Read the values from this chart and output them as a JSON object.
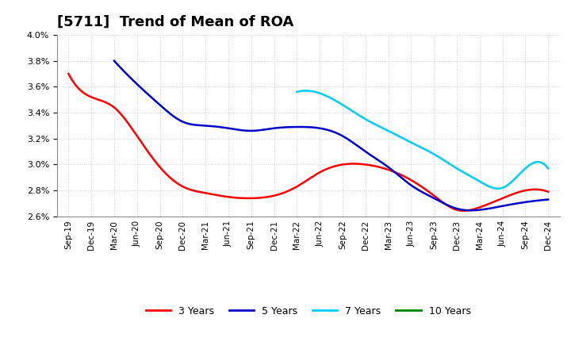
{
  "title": "[5711]  Trend of Mean of ROA",
  "x_labels": [
    "Sep-19",
    "Dec-19",
    "Mar-20",
    "Jun-20",
    "Sep-20",
    "Dec-20",
    "Mar-21",
    "Jun-21",
    "Sep-21",
    "Dec-21",
    "Mar-22",
    "Jun-22",
    "Sep-22",
    "Dec-22",
    "Mar-23",
    "Jun-23",
    "Sep-23",
    "Dec-23",
    "Mar-24",
    "Jun-24",
    "Sep-24",
    "Dec-24"
  ],
  "ylim": [
    0.026,
    0.04
  ],
  "yticks": [
    0.026,
    0.028,
    0.03,
    0.032,
    0.034,
    0.036,
    0.038,
    0.04
  ],
  "y_3yr": [
    3.7,
    3.52,
    3.44,
    3.22,
    2.98,
    2.83,
    2.78,
    2.75,
    2.74,
    2.76,
    2.83,
    2.94,
    3.0,
    3.0,
    2.96,
    2.88,
    2.76,
    2.65,
    2.67,
    2.74,
    2.8,
    2.79
  ],
  "y_5yr": [
    null,
    null,
    3.8,
    3.62,
    3.46,
    3.33,
    3.3,
    3.28,
    3.26,
    3.28,
    3.29,
    3.28,
    3.22,
    3.1,
    2.98,
    2.84,
    2.74,
    2.66,
    2.65,
    2.68,
    2.71,
    2.73
  ],
  "y_7yr": [
    null,
    null,
    null,
    null,
    null,
    null,
    null,
    null,
    null,
    null,
    3.56,
    3.55,
    3.46,
    3.35,
    3.26,
    3.17,
    3.08,
    2.97,
    2.87,
    2.82,
    2.97,
    2.97
  ],
  "y_10yr": [
    null,
    null,
    null,
    null,
    null,
    null,
    null,
    null,
    null,
    null,
    null,
    null,
    null,
    null,
    null,
    null,
    null,
    null,
    null,
    null,
    null,
    null
  ],
  "color_3yr": "#FF0000",
  "color_5yr": "#0000CD",
  "color_7yr": "#00CCFF",
  "color_10yr": "#008000",
  "background_color": "#FFFFFF",
  "grid_color": "#AAAAAA",
  "title_fontsize": 13
}
